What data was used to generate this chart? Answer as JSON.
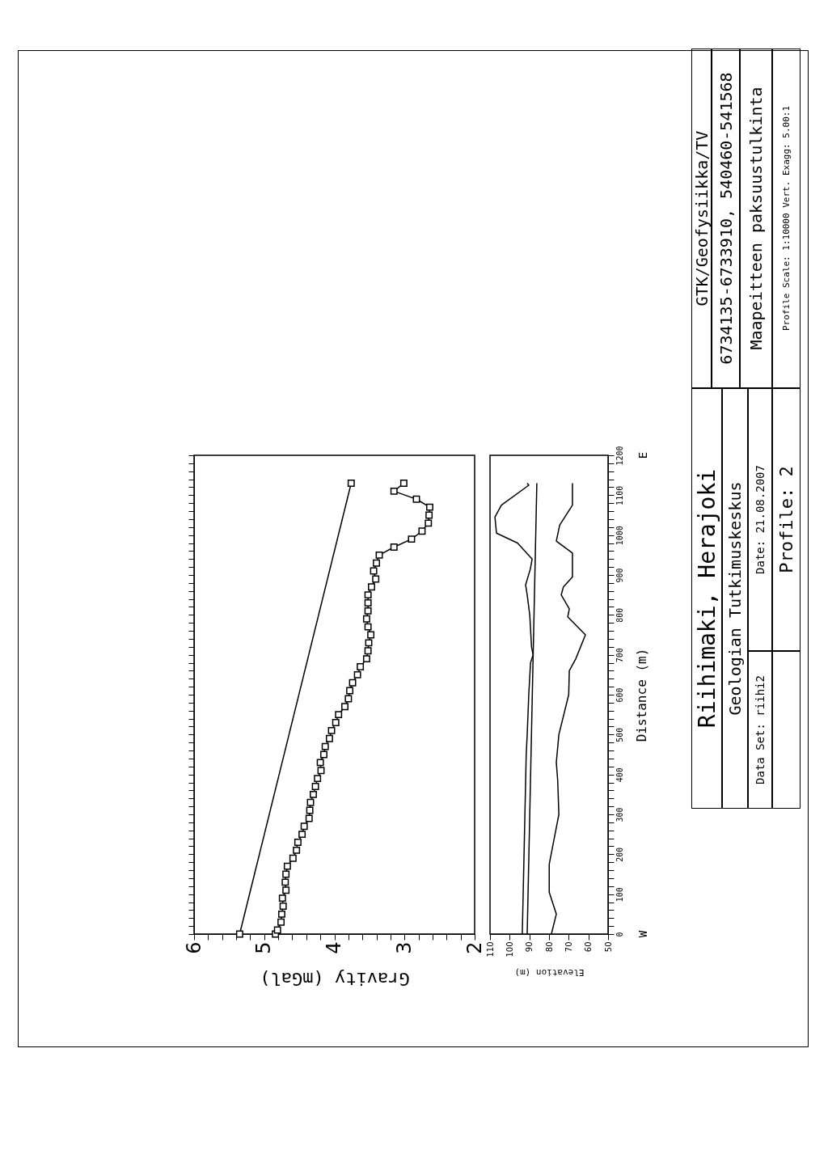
{
  "chart_data": [
    {
      "type": "line",
      "xlabel": "Gravity (mGal)",
      "xlim": [
        6,
        2
      ],
      "ylim": [
        0,
        1200
      ],
      "tick_labels": "x",
      "marker": "square",
      "yticks": [
        0,
        {
          "value": 20,
          "label": null
        },
        {
          "value": 40,
          "label": null
        },
        {
          "value": 60,
          "label": null
        },
        {
          "value": 80,
          "label": null
        },
        100,
        {
          "value": 120,
          "label": null
        },
        {
          "value": 140,
          "label": null
        },
        {
          "value": 160,
          "label": null
        },
        {
          "value": 180,
          "label": null
        },
        200,
        {
          "value": 220,
          "label": null
        },
        {
          "value": 240,
          "label": null
        },
        {
          "value": 260,
          "label": null
        },
        {
          "value": 280,
          "label": null
        },
        300,
        {
          "value": 320,
          "label": null
        },
        {
          "value": 340,
          "label": null
        },
        {
          "value": 360,
          "label": null
        },
        {
          "value": 380,
          "label": null
        },
        400,
        {
          "value": 420,
          "label": null
        },
        {
          "value": 440,
          "label": null
        },
        {
          "value": 460,
          "label": null
        },
        {
          "value": 480,
          "label": null
        },
        500,
        {
          "value": 520,
          "label": null
        },
        {
          "value": 540,
          "label": null
        },
        {
          "value": 560,
          "label": null
        },
        {
          "value": 580,
          "label": null
        },
        600,
        {
          "value": 620,
          "label": null
        },
        {
          "value": 640,
          "label": null
        },
        {
          "value": 660,
          "label": null
        },
        {
          "value": 680,
          "label": null
        },
        700,
        {
          "value": 720,
          "label": null
        },
        {
          "value": 740,
          "label": null
        },
        {
          "value": 760,
          "label": null
        },
        {
          "value": 780,
          "label": null
        },
        800,
        {
          "value": 820,
          "label": null
        },
        {
          "value": 840,
          "label": null
        },
        {
          "value": 860,
          "label": null
        },
        {
          "value": 880,
          "label": null
        },
        900,
        {
          "value": 920,
          "label": null
        },
        {
          "value": 940,
          "label": null
        },
        {
          "value": 960,
          "label": null
        },
        {
          "value": 980,
          "label": null
        },
        1000,
        {
          "value": 1020,
          "label": null
        },
        {
          "value": 1040,
          "label": null
        },
        {
          "value": 1060,
          "label": null
        },
        {
          "value": 1080,
          "label": null
        },
        1100,
        {
          "value": 1120,
          "label": null
        },
        {
          "value": 1140,
          "label": null
        },
        {
          "value": 1160,
          "label": null
        },
        {
          "value": 1180,
          "label": null
        },
        1200
      ],
      "xticks": [
        2,
        {
          "value": 2.2,
          "label": null
        },
        {
          "value": 2.4,
          "label": null
        },
        {
          "value": 2.6,
          "label": null
        },
        {
          "value": 2.8,
          "label": null
        },
        3,
        {
          "value": 3.2,
          "label": null
        },
        {
          "value": 3.4,
          "label": null
        },
        {
          "value": 3.6,
          "label": null
        },
        {
          "value": 3.8,
          "label": null
        },
        4,
        {
          "value": 4.2,
          "label": null
        },
        {
          "value": 4.4,
          "label": null
        },
        {
          "value": 4.6,
          "label": null
        },
        {
          "value": 4.8,
          "label": null
        },
        5,
        {
          "value": 5.2,
          "label": null
        },
        {
          "value": 5.4,
          "label": null
        },
        {
          "value": 5.6,
          "label": null
        },
        {
          "value": 5.8,
          "label": null
        },
        6
      ],
      "series": [
        {
          "color": "#000000",
          "x": [
            5.35,
            3.76
          ],
          "values": [
            0,
            1130
          ]
        },
        {
          "color": "#000000",
          "x": [
            4.84,
            4.81,
            4.76,
            4.75,
            4.73,
            4.74,
            4.69,
            4.7,
            4.69,
            4.67,
            4.59,
            4.54,
            4.52,
            4.46,
            4.43,
            4.36,
            4.35,
            4.34,
            4.3,
            4.27,
            4.24,
            4.19,
            4.2,
            4.15,
            4.13,
            4.07,
            4.04,
            3.98,
            3.94,
            3.85,
            3.8,
            3.78,
            3.74,
            3.67,
            3.63,
            3.54,
            3.52,
            3.51,
            3.48,
            3.52,
            3.54,
            3.52,
            3.52,
            3.52,
            3.47,
            3.41,
            3.44,
            3.4,
            3.36,
            3.15,
            2.9,
            2.75,
            2.66,
            2.65,
            2.64,
            2.83,
            3.15,
            3.01
          ],
          "values": [
            0,
            10,
            30,
            50,
            70,
            90,
            110,
            130,
            150,
            170,
            190,
            210,
            230,
            250,
            270,
            290,
            310,
            330,
            350,
            370,
            390,
            410,
            430,
            450,
            470,
            490,
            510,
            530,
            550,
            570,
            590,
            610,
            630,
            650,
            670,
            690,
            710,
            730,
            750,
            770,
            790,
            810,
            830,
            850,
            870,
            890,
            910,
            930,
            950,
            970,
            990,
            1010,
            1030,
            1050,
            1070,
            1090,
            1110,
            1130
          ]
        }
      ]
    },
    {
      "type": "line",
      "xlabel": "Elevation (m)",
      "ylabel": "Distance (m)",
      "xlim": [
        110,
        50
      ],
      "ylim": [
        0,
        1200
      ],
      "yticks": [
        0,
        {
          "value": 20,
          "label": null
        },
        {
          "value": 40,
          "label": null
        },
        {
          "value": 60,
          "label": null
        },
        {
          "value": 80,
          "label": null
        },
        100,
        {
          "value": 120,
          "label": null
        },
        {
          "value": 140,
          "label": null
        },
        {
          "value": 160,
          "label": null
        },
        {
          "value": 180,
          "label": null
        },
        200,
        {
          "value": 220,
          "label": null
        },
        {
          "value": 240,
          "label": null
        },
        {
          "value": 260,
          "label": null
        },
        {
          "value": 280,
          "label": null
        },
        300,
        {
          "value": 320,
          "label": null
        },
        {
          "value": 340,
          "label": null
        },
        {
          "value": 360,
          "label": null
        },
        {
          "value": 380,
          "label": null
        },
        400,
        {
          "value": 420,
          "label": null
        },
        {
          "value": 440,
          "label": null
        },
        {
          "value": 460,
          "label": null
        },
        {
          "value": 480,
          "label": null
        },
        500,
        {
          "value": 520,
          "label": null
        },
        {
          "value": 540,
          "label": null
        },
        {
          "value": 560,
          "label": null
        },
        {
          "value": 580,
          "label": null
        },
        600,
        {
          "value": 620,
          "label": null
        },
        {
          "value": 640,
          "label": null
        },
        {
          "value": 660,
          "label": null
        },
        {
          "value": 680,
          "label": null
        },
        700,
        {
          "value": 720,
          "label": null
        },
        {
          "value": 740,
          "label": null
        },
        {
          "value": 760,
          "label": null
        },
        {
          "value": 780,
          "label": null
        },
        800,
        {
          "value": 820,
          "label": null
        },
        {
          "value": 840,
          "label": null
        },
        {
          "value": 860,
          "label": null
        },
        {
          "value": 880,
          "label": null
        },
        900,
        {
          "value": 920,
          "label": null
        },
        {
          "value": 940,
          "label": null
        },
        {
          "value": 960,
          "label": null
        },
        {
          "value": 980,
          "label": null
        },
        1000,
        {
          "value": 1020,
          "label": null
        },
        {
          "value": 1040,
          "label": null
        },
        {
          "value": 1060,
          "label": null
        },
        {
          "value": 1080,
          "label": null
        },
        1100,
        {
          "value": 1120,
          "label": null
        },
        {
          "value": 1140,
          "label": null
        },
        {
          "value": 1160,
          "label": null
        },
        {
          "value": 1180,
          "label": null
        },
        1200
      ],
      "xticks": [
        110,
        100,
        90,
        80,
        70,
        60,
        50
      ],
      "annotations": [
        "W",
        "E"
      ],
      "series": [
        {
          "color": "#000000",
          "x": [
            91.1,
            86.2
          ],
          "values": [
            0,
            1130
          ]
        },
        {
          "color": "#000000",
          "x": [
            93.6,
            92.7,
            91.6,
            91.1,
            90.3,
            89.4,
            88.1,
            88.9,
            89.8,
            91.1,
            91.9,
            89.5,
            88.6,
            96.0,
            106.7,
            107.5,
            104.2,
            90.3,
            91.1
          ],
          "values": [
            0,
            200,
            450,
            500,
            600,
            680,
            700,
            720,
            800,
            850,
            875,
            915,
            940,
            980,
            1005,
            1045,
            1075,
            1125,
            1130
          ]
        },
        {
          "color": "#000000",
          "x": [
            78.8,
            76.3,
            79.9,
            79.9,
            75.0,
            75.6,
            76.3,
            75.0,
            70.0,
            69.7,
            66.4,
            61.5,
            70.5,
            69.7,
            73.8,
            72.7,
            68.1,
            68.1,
            76.3,
            74.6,
            68.1,
            68.1
          ],
          "values": [
            0,
            50,
            105,
            175,
            300,
            385,
            430,
            500,
            600,
            660,
            690,
            750,
            795,
            815,
            850,
            870,
            895,
            955,
            985,
            1025,
            1075,
            1130
          ]
        }
      ]
    },
    {
      "type": "other",
      "title": "Riihimaki, Herajoki",
      "annotations": [
        "Geologian Tutkimuskeskus",
        "Data Set: riihi2",
        "Date: 21.08.2007",
        "Profile: 2",
        "GTK/Geofysiikka/TV",
        "6734135-6733910, 540460-541568",
        "Maapeitteen paksuustulkinta",
        "Profile Scale: 1:10000 Vert. Exagg: 5.00:1"
      ]
    }
  ]
}
